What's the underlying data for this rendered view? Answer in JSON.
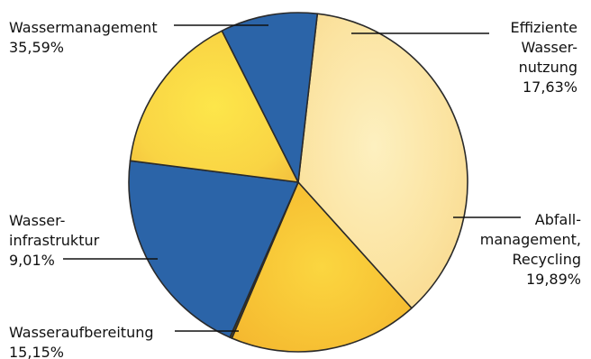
{
  "chart_data": {
    "type": "pie",
    "title": "",
    "slices": [
      {
        "name": "Wassermanagement",
        "value": 35.59,
        "value_label": "35,59%",
        "color": "#fbe7a6",
        "label_lines": [
          "Wassermanagement"
        ]
      },
      {
        "name": "Effiziente Wassernutzung",
        "value": 17.63,
        "value_label": "17,63%",
        "color": "#f9cf3c",
        "label_lines": [
          "Effiziente",
          "Wasser-",
          "nutzung"
        ]
      },
      {
        "name": "",
        "value": 0.2,
        "value_label": "",
        "color": "#5a4a1a",
        "label_lines": []
      },
      {
        "name": "Abfallmanagement, Recycling",
        "value": 19.89,
        "value_label": "19,89%",
        "color": "#2b64a8",
        "label_lines": [
          "Abfall-",
          "management,",
          "Recycling"
        ]
      },
      {
        "name": "Wasseraufbereitung",
        "value": 15.15,
        "value_label": "15,15%",
        "color": "#f9dc4a",
        "label_lines": [
          "Wasseraufbereitung"
        ]
      },
      {
        "name": "Wasserinfrastruktur",
        "value": 9.01,
        "value_label": "9,01%",
        "color": "#2b64a8",
        "label_lines": [
          "Wasser-",
          "infrastruktur"
        ]
      }
    ],
    "start_angle_deg": -83.5,
    "direction": "clockwise"
  }
}
